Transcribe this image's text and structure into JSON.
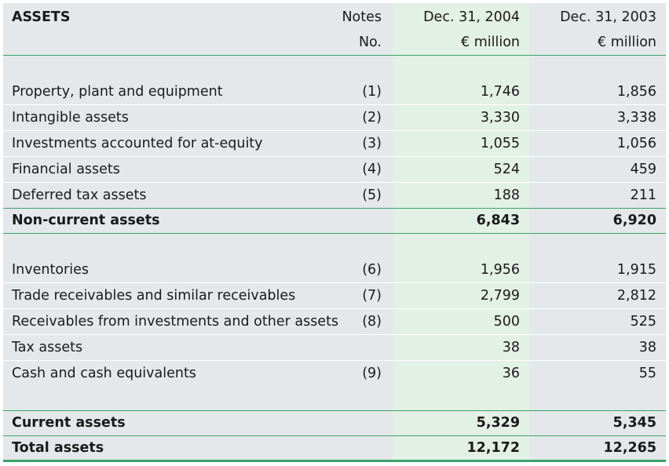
{
  "header": {
    "title": "ASSETS",
    "notes_line1": "Notes",
    "notes_line2": "No.",
    "col2004_line1": "Dec. 31, 2004",
    "col2004_line2": "€ million",
    "col2003_line1": "Dec. 31, 2003",
    "col2003_line2": "€ million"
  },
  "noncurrent": [
    {
      "label": "Property, plant and equipment",
      "note": "(1)",
      "v2004": "1,746",
      "v2003": "1,856"
    },
    {
      "label": "Intangible assets",
      "note": "(2)",
      "v2004": "3,330",
      "v2003": "3,338"
    },
    {
      "label": "Investments accounted for at-equity",
      "note": "(3)",
      "v2004": "1,055",
      "v2003": "1,056"
    },
    {
      "label": "Financial assets",
      "note": "(4)",
      "v2004": "524",
      "v2003": "459"
    },
    {
      "label": "Deferred tax assets",
      "note": "(5)",
      "v2004": "188",
      "v2003": "211"
    }
  ],
  "noncurrent_total": {
    "label": "Non-current assets",
    "v2004": "6,843",
    "v2003": "6,920"
  },
  "current": [
    {
      "label": "Inventories",
      "note": "(6)",
      "v2004": "1,956",
      "v2003": "1,915"
    },
    {
      "label": "Trade receivables and similar receivables",
      "note": "(7)",
      "v2004": "2,799",
      "v2003": "2,812"
    },
    {
      "label": "Receivables from investments and other assets",
      "note": "(8)",
      "v2004": "500",
      "v2003": "525"
    },
    {
      "label": "Tax assets",
      "note": "",
      "v2004": "38",
      "v2003": "38"
    },
    {
      "label": "Cash and cash equivalents",
      "note": "(9)",
      "v2004": "36",
      "v2003": "55"
    }
  ],
  "current_total": {
    "label": "Current assets",
    "v2004": "5,329",
    "v2003": "5,345"
  },
  "grand_total": {
    "label": "Total assets",
    "v2004": "12,172",
    "v2003": "12,265"
  }
}
